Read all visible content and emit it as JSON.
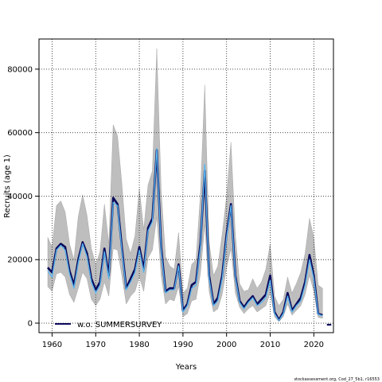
{
  "chart_data": {
    "type": "line",
    "title": "",
    "xlabel": "Years",
    "ylabel": "Recruits (age 1)",
    "xlim": [
      1957,
      2024.5
    ],
    "ylim": [
      -3000,
      89500
    ],
    "xticks": [
      1960,
      1970,
      1980,
      1990,
      2000,
      2010,
      2020
    ],
    "yticks": [
      0,
      20000,
      40000,
      60000,
      80000
    ],
    "grid": true,
    "legend_position": "bottom-left",
    "colors": {
      "band": "#bebebe",
      "main_line": "#0a0a5c",
      "alt_line": "#55b4f0",
      "grid": "#333333"
    },
    "x": [
      1959,
      1960,
      1961,
      1962,
      1963,
      1964,
      1965,
      1966,
      1967,
      1968,
      1969,
      1970,
      1971,
      1972,
      1973,
      1974,
      1975,
      1976,
      1977,
      1978,
      1979,
      1980,
      1981,
      1982,
      1983,
      1984,
      1985,
      1986,
      1987,
      1988,
      1989,
      1990,
      1991,
      1992,
      1993,
      1994,
      1995,
      1996,
      1997,
      1998,
      1999,
      2000,
      2001,
      2002,
      2003,
      2004,
      2005,
      2006,
      2007,
      2008,
      2009,
      2010,
      2011,
      2012,
      2013,
      2014,
      2015,
      2016,
      2017,
      2018,
      2019,
      2020,
      2021,
      2022
    ],
    "series": [
      {
        "name": "w.o. SUMMERSURVEY",
        "values": [
          17500,
          16000,
          23500,
          25000,
          24000,
          16500,
          12000,
          20000,
          25500,
          22000,
          14000,
          10500,
          13000,
          23500,
          15000,
          39500,
          37500,
          24000,
          11000,
          14000,
          17000,
          24000,
          17000,
          30000,
          33000,
          54500,
          24000,
          10000,
          11000,
          11000,
          18500,
          4000,
          6000,
          12000,
          13000,
          25000,
          48000,
          15000,
          6000,
          8000,
          15000,
          28000,
          37500,
          15000,
          7000,
          5000,
          7000,
          8500,
          6000,
          7500,
          9000,
          15000,
          3500,
          1000,
          3500,
          9500,
          4000,
          6000,
          8000,
          13000,
          21500,
          15000,
          3000,
          2500
        ]
      },
      {
        "name": "",
        "values": [
          16500,
          14500,
          23000,
          24500,
          23000,
          15500,
          11000,
          19000,
          25000,
          21000,
          13000,
          9500,
          12000,
          22500,
          14000,
          38000,
          37000,
          23000,
          10500,
          13000,
          16000,
          23000,
          16000,
          29000,
          32000,
          55000,
          23000,
          9500,
          10500,
          10500,
          18000,
          3500,
          5500,
          11000,
          12000,
          24000,
          50000,
          14000,
          5500,
          7000,
          14000,
          27000,
          37000,
          14500,
          6500,
          4500,
          6500,
          8000,
          5500,
          6500,
          8000,
          13500,
          3000,
          800,
          3000,
          8500,
          3500,
          5500,
          7000,
          12000,
          20000,
          14000,
          2800,
          2300
        ]
      }
    ],
    "band_upper": [
      27000,
      24000,
      37000,
      38500,
      35000,
      25000,
      20000,
      33500,
      40500,
      34000,
      23500,
      18500,
      22500,
      37500,
      25000,
      62500,
      59000,
      44000,
      26500,
      22000,
      27500,
      42500,
      29500,
      43500,
      48000,
      86500,
      42000,
      21000,
      18000,
      17000,
      28500,
      9500,
      11000,
      18500,
      20000,
      40500,
      75000,
      25500,
      15000,
      18000,
      28000,
      40000,
      57000,
      28000,
      12500,
      10000,
      10500,
      14000,
      11000,
      13000,
      17000,
      25000,
      8500,
      5500,
      7500,
      14500,
      9500,
      12500,
      16000,
      22000,
      33000,
      27000,
      12000,
      11000
    ],
    "band_lower": [
      11500,
      10000,
      15500,
      16000,
      14500,
      9000,
      6500,
      11000,
      16000,
      14000,
      7500,
      5500,
      7500,
      13000,
      8500,
      23500,
      23000,
      15000,
      6000,
      8500,
      10000,
      14500,
      10000,
      20500,
      23000,
      33500,
      15000,
      6000,
      7500,
      7000,
      11500,
      2000,
      3000,
      7000,
      7500,
      15500,
      31000,
      10000,
      3500,
      4500,
      9000,
      17500,
      23500,
      9500,
      5000,
      3000,
      4500,
      5500,
      3500,
      4500,
      5500,
      9500,
      2000,
      500,
      2000,
      6000,
      2500,
      4000,
      5500,
      9000,
      15000,
      10000,
      1800,
      1500
    ],
    "end_point": {
      "x": [
        2023,
        2024
      ],
      "y": [
        -500,
        -500
      ]
    }
  },
  "footer_text": "stockassessment.org, Cod_27_5b1, r16553"
}
